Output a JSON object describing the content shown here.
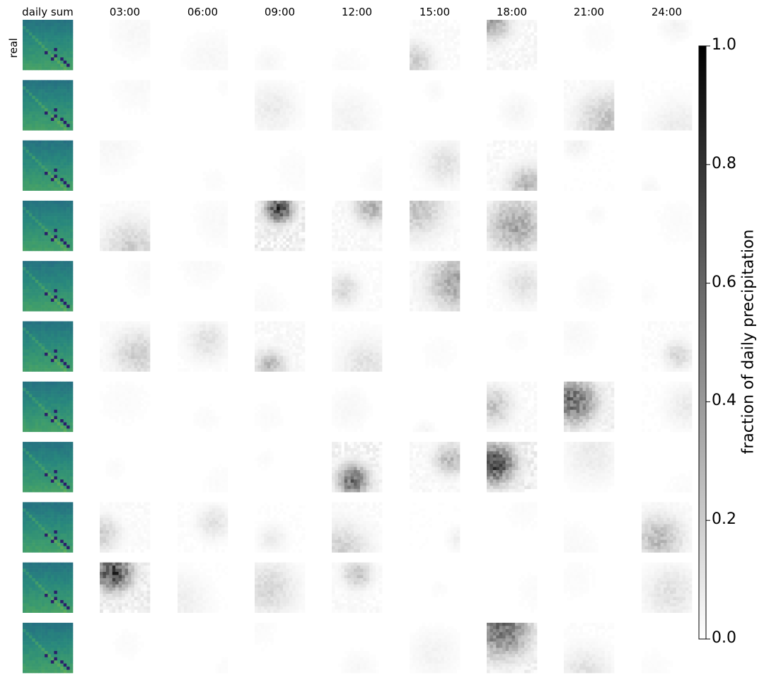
{
  "chart_data": {
    "type": "heatmap",
    "column_headers": [
      "daily sum",
      "03:00",
      "06:00",
      "09:00",
      "12:00",
      "15:00",
      "18:00",
      "21:00",
      "24:00"
    ],
    "row_label": "real",
    "rows": 11,
    "colorbar": {
      "label": "fraction of daily precipitation",
      "ticks": [
        "0.0",
        "0.2",
        "0.4",
        "0.6",
        "0.8",
        "1.0"
      ],
      "range": [
        0.0,
        1.0
      ],
      "colormap": "gray_r"
    },
    "daily_sum_colormap": "viridis",
    "peak_fraction": [
      [
        0.04,
        0.04,
        0.04,
        0.02,
        0.25,
        0.45,
        0.02,
        0.06
      ],
      [
        0.03,
        0.02,
        0.1,
        0.06,
        0.03,
        0.05,
        0.3,
        0.1
      ],
      [
        0.04,
        0.02,
        0.02,
        0.03,
        0.15,
        0.35,
        0.08,
        0.04
      ],
      [
        0.25,
        0.03,
        0.95,
        0.4,
        0.3,
        0.45,
        0.03,
        0.02
      ],
      [
        0.03,
        0.03,
        0.03,
        0.2,
        0.45,
        0.15,
        0.03,
        0.02
      ],
      [
        0.25,
        0.15,
        0.35,
        0.15,
        0.02,
        0.02,
        0.03,
        0.2
      ],
      [
        0.02,
        0.02,
        0.02,
        0.04,
        0.05,
        0.3,
        0.75,
        0.1
      ],
      [
        0.02,
        0.02,
        0.02,
        0.75,
        0.35,
        0.95,
        0.1,
        0.02
      ],
      [
        0.25,
        0.15,
        0.1,
        0.25,
        0.08,
        0.02,
        0.03,
        0.35
      ],
      [
        0.95,
        0.08,
        0.2,
        0.3,
        0.02,
        0.02,
        0.02,
        0.15
      ],
      [
        0.02,
        0.02,
        0.02,
        0.04,
        0.06,
        0.75,
        0.15,
        0.02
      ]
    ]
  }
}
